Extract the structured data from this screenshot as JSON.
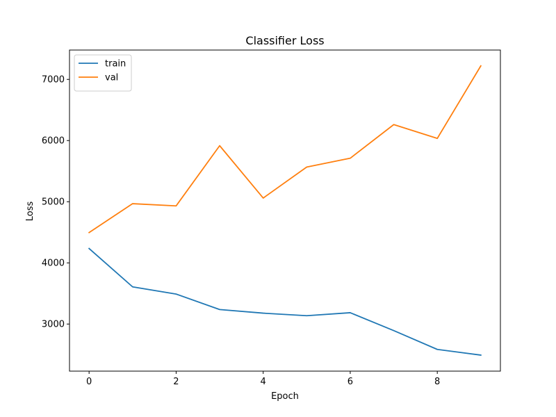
{
  "chart_data": {
    "type": "line",
    "title": "Classifier Loss",
    "xlabel": "Epoch",
    "ylabel": "Loss",
    "x": [
      0,
      1,
      2,
      3,
      4,
      5,
      6,
      7,
      8,
      9
    ],
    "xlim": [
      -0.45,
      9.45
    ],
    "ylim": [
      2230,
      7480
    ],
    "xticks": [
      0,
      2,
      4,
      6,
      8
    ],
    "yticks": [
      3000,
      4000,
      5000,
      6000,
      7000
    ],
    "grid": false,
    "legend_position": "top-left",
    "series": [
      {
        "name": "train",
        "color": "#1f77b4",
        "values": [
          4235,
          3608,
          3490,
          3237,
          3178,
          3136,
          3185,
          2893,
          2585,
          2492
        ]
      },
      {
        "name": "val",
        "color": "#ff7f0e",
        "values": [
          4495,
          4968,
          4932,
          5916,
          5060,
          5567,
          5711,
          6261,
          6035,
          7221
        ]
      }
    ]
  }
}
